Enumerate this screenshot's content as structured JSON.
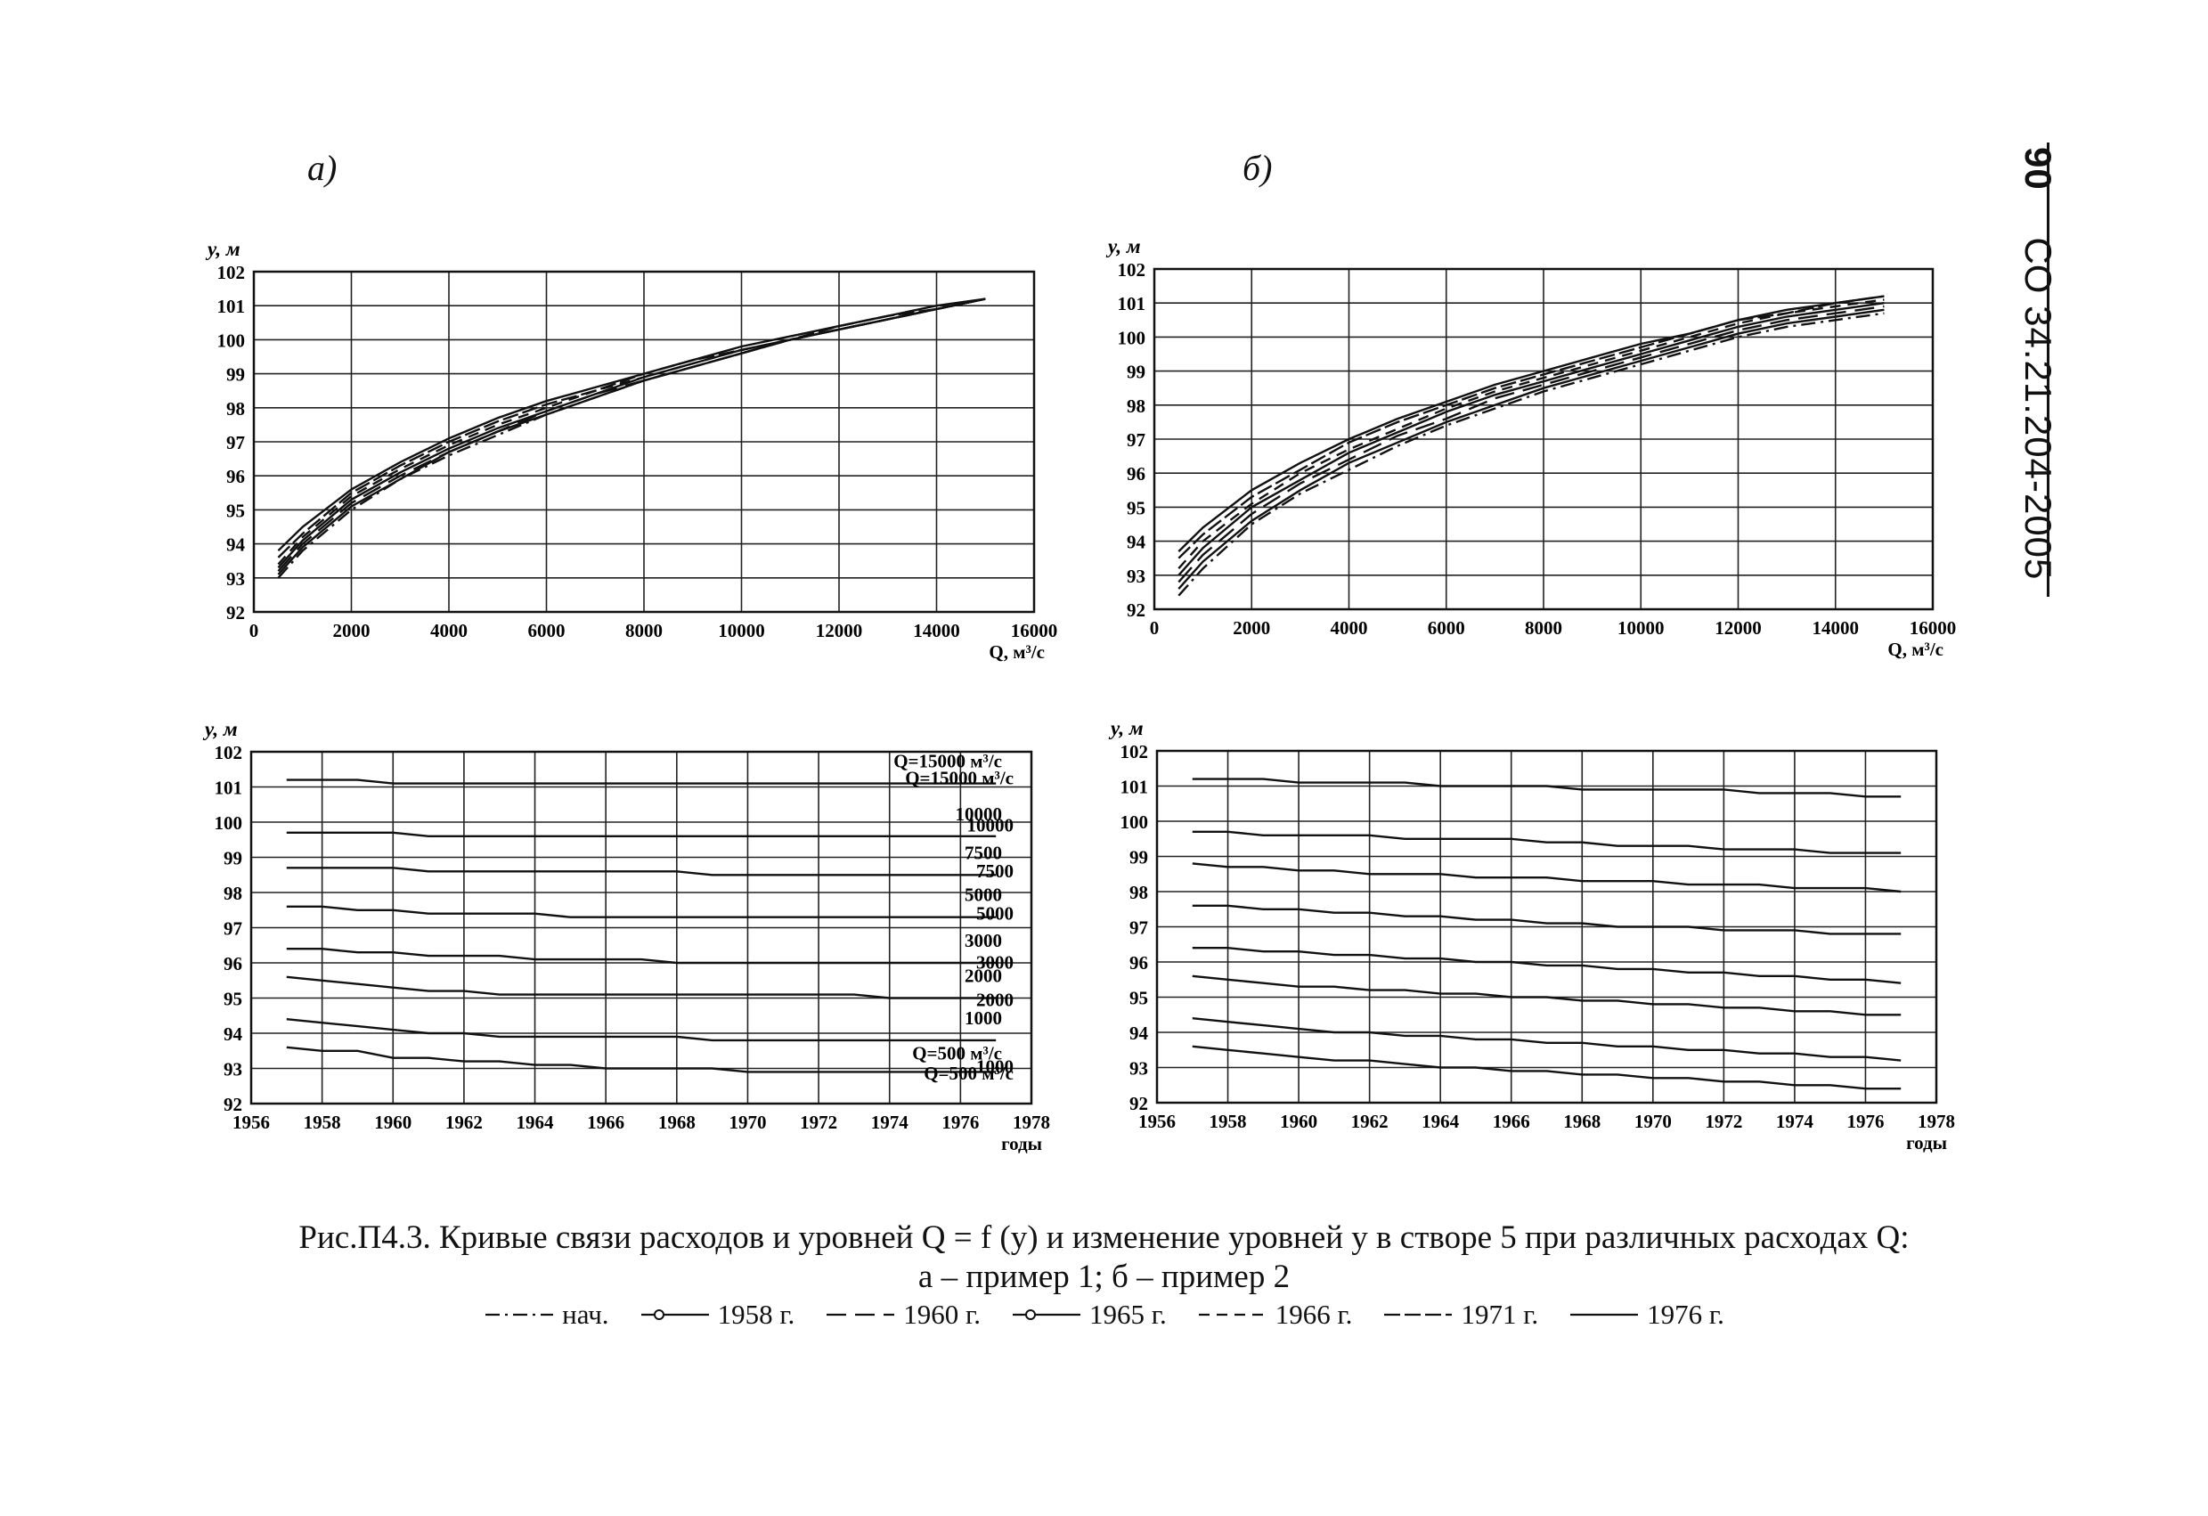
{
  "panels": {
    "a_label": "а)",
    "b_label": "б)"
  },
  "stamp": {
    "page_number": "90",
    "doc_code": "СО 34.21.204-2005"
  },
  "caption": {
    "line1": "Рис.П4.3. Кривые связи расходов и уровней Q = f (y) и изменение уровней y в створе  5  при различных расходах Q:",
    "line2": "а – пример 1;  б – пример 2"
  },
  "legend": [
    {
      "label": "нач.",
      "style": "dashdot"
    },
    {
      "label": "1958 г.",
      "style": "circle"
    },
    {
      "label": "1960 г.",
      "style": "longdash"
    },
    {
      "label": "1965 г.",
      "style": "circle-solid"
    },
    {
      "label": "1966 г.",
      "style": "dash"
    },
    {
      "label": "1971 г.",
      "style": "dash2"
    },
    {
      "label": "1976 г.",
      "style": "solid"
    }
  ],
  "chart_data": [
    {
      "id": "a-rating",
      "type": "line",
      "ylabel": "y, м",
      "xlabel": "Q, м³/с",
      "xlim": [
        0,
        16000
      ],
      "ylim": [
        92,
        102
      ],
      "xticks": [
        0,
        2000,
        4000,
        6000,
        8000,
        10000,
        12000,
        14000,
        16000
      ],
      "yticks": [
        92,
        93,
        94,
        95,
        96,
        97,
        98,
        99,
        100,
        101,
        102
      ],
      "x": [
        500,
        1000,
        2000,
        3000,
        4000,
        5000,
        6000,
        7000,
        8000,
        9000,
        10000,
        11000,
        12000,
        13000,
        14000,
        15000
      ],
      "grid": true,
      "series": [
        {
          "name": "нач.",
          "style": "dashdot",
          "values": [
            93.0,
            93.8,
            95.0,
            95.9,
            96.6,
            97.2,
            97.8,
            98.3,
            98.8,
            99.2,
            99.6,
            100.0,
            100.3,
            100.6,
            100.9,
            101.2
          ]
        },
        {
          "name": "1958 г.",
          "style": "circle",
          "values": [
            93.1,
            93.9,
            95.1,
            95.9,
            96.7,
            97.3,
            97.8,
            98.3,
            98.8,
            99.2,
            99.6,
            100.0,
            100.3,
            100.6,
            100.9,
            101.2
          ]
        },
        {
          "name": "1960 г.",
          "style": "longdash",
          "values": [
            93.2,
            94.0,
            95.2,
            96.0,
            96.7,
            97.3,
            97.9,
            98.4,
            98.8,
            99.2,
            99.6,
            100.0,
            100.3,
            100.6,
            100.9,
            101.2
          ]
        },
        {
          "name": "1965 г.",
          "style": "circle-solid",
          "values": [
            93.3,
            94.1,
            95.3,
            96.1,
            96.8,
            97.4,
            97.9,
            98.4,
            98.9,
            99.3,
            99.7,
            100.0,
            100.3,
            100.6,
            100.9,
            101.2
          ]
        },
        {
          "name": "1966 г.",
          "style": "dash",
          "values": [
            93.4,
            94.2,
            95.4,
            96.2,
            96.9,
            97.5,
            98.0,
            98.5,
            98.9,
            99.3,
            99.7,
            100.0,
            100.3,
            100.6,
            100.9,
            101.2
          ]
        },
        {
          "name": "1971 г.",
          "style": "dash2",
          "values": [
            93.6,
            94.3,
            95.5,
            96.3,
            97.0,
            97.6,
            98.1,
            98.5,
            99.0,
            99.4,
            99.7,
            100.0,
            100.4,
            100.7,
            100.9,
            101.2
          ]
        },
        {
          "name": "1976 г.",
          "style": "solid",
          "values": [
            93.8,
            94.5,
            95.6,
            96.4,
            97.1,
            97.7,
            98.2,
            98.6,
            99.0,
            99.4,
            99.8,
            100.1,
            100.4,
            100.7,
            101.0,
            101.2
          ]
        }
      ]
    },
    {
      "id": "b-rating",
      "type": "line",
      "ylabel": "y, м",
      "xlabel": "Q, м³/с",
      "xlim": [
        0,
        16000
      ],
      "ylim": [
        92,
        102
      ],
      "xticks": [
        0,
        2000,
        4000,
        6000,
        8000,
        10000,
        12000,
        14000,
        16000
      ],
      "yticks": [
        92,
        93,
        94,
        95,
        96,
        97,
        98,
        99,
        100,
        101,
        102
      ],
      "x": [
        500,
        1000,
        2000,
        3000,
        4000,
        5000,
        6000,
        7000,
        8000,
        9000,
        10000,
        11000,
        12000,
        13000,
        14000,
        15000
      ],
      "grid": true,
      "series": [
        {
          "name": "нач.",
          "style": "dashdot",
          "values": [
            92.4,
            93.2,
            94.5,
            95.4,
            96.1,
            96.8,
            97.4,
            97.9,
            98.4,
            98.8,
            99.2,
            99.6,
            100.0,
            100.3,
            100.5,
            100.7
          ]
        },
        {
          "name": "1958 г.",
          "style": "circle",
          "values": [
            92.6,
            93.4,
            94.6,
            95.5,
            96.3,
            96.9,
            97.5,
            98.0,
            98.5,
            98.9,
            99.3,
            99.7,
            100.1,
            100.4,
            100.6,
            100.8
          ]
        },
        {
          "name": "1960 г.",
          "style": "longdash",
          "values": [
            92.8,
            93.6,
            94.8,
            95.7,
            96.4,
            97.1,
            97.6,
            98.2,
            98.6,
            99.0,
            99.4,
            99.8,
            100.2,
            100.5,
            100.7,
            100.9
          ]
        },
        {
          "name": "1965 г.",
          "style": "circle-solid",
          "values": [
            93.0,
            93.8,
            95.0,
            95.8,
            96.6,
            97.2,
            97.8,
            98.3,
            98.7,
            99.1,
            99.5,
            99.9,
            100.3,
            100.6,
            100.8,
            101.0
          ]
        },
        {
          "name": "1966 г.",
          "style": "dash",
          "values": [
            93.2,
            94.0,
            95.1,
            96.0,
            96.7,
            97.3,
            97.9,
            98.4,
            98.8,
            99.2,
            99.6,
            100.0,
            100.4,
            100.7,
            100.9,
            101.1
          ]
        },
        {
          "name": "1971 г.",
          "style": "dash2",
          "values": [
            93.5,
            94.2,
            95.3,
            96.1,
            96.9,
            97.5,
            98.0,
            98.5,
            98.9,
            99.3,
            99.7,
            100.1,
            100.5,
            100.7,
            101.0,
            101.2
          ]
        },
        {
          "name": "1976 г.",
          "style": "solid",
          "values": [
            93.7,
            94.4,
            95.5,
            96.3,
            97.0,
            97.6,
            98.1,
            98.6,
            99.0,
            99.4,
            99.8,
            100.1,
            100.5,
            100.8,
            101.0,
            101.2
          ]
        }
      ]
    },
    {
      "id": "a-levels",
      "type": "line",
      "ylabel": "y, м",
      "xlabel": "годы",
      "xlim": [
        1956,
        1978
      ],
      "ylim": [
        92,
        102
      ],
      "xticks": [
        1956,
        1958,
        1960,
        1962,
        1964,
        1966,
        1968,
        1970,
        1972,
        1974,
        1976,
        1978
      ],
      "yticks": [
        92,
        93,
        94,
        95,
        96,
        97,
        98,
        99,
        100,
        101,
        102
      ],
      "x": [
        1957,
        1958,
        1959,
        1960,
        1961,
        1962,
        1963,
        1964,
        1965,
        1966,
        1967,
        1968,
        1969,
        1970,
        1971,
        1972,
        1973,
        1974,
        1975,
        1976,
        1977
      ],
      "grid": true,
      "series": [
        {
          "name": "Q=15000 м³/с",
          "style": "solid",
          "values": [
            101.2,
            101.2,
            101.2,
            101.1,
            101.1,
            101.1,
            101.1,
            101.1,
            101.1,
            101.1,
            101.1,
            101.1,
            101.1,
            101.1,
            101.1,
            101.1,
            101.1,
            101.1,
            101.1,
            101.1,
            101.1
          ]
        },
        {
          "name": "10000",
          "style": "solid",
          "values": [
            99.7,
            99.7,
            99.7,
            99.7,
            99.6,
            99.6,
            99.6,
            99.6,
            99.6,
            99.6,
            99.6,
            99.6,
            99.6,
            99.6,
            99.6,
            99.6,
            99.6,
            99.6,
            99.6,
            99.6,
            99.6
          ]
        },
        {
          "name": "7500",
          "style": "solid",
          "values": [
            98.7,
            98.7,
            98.7,
            98.7,
            98.6,
            98.6,
            98.6,
            98.6,
            98.6,
            98.6,
            98.6,
            98.6,
            98.5,
            98.5,
            98.5,
            98.5,
            98.5,
            98.5,
            98.5,
            98.5,
            98.5
          ]
        },
        {
          "name": "5000",
          "style": "solid",
          "values": [
            97.6,
            97.6,
            97.5,
            97.5,
            97.4,
            97.4,
            97.4,
            97.4,
            97.3,
            97.3,
            97.3,
            97.3,
            97.3,
            97.3,
            97.3,
            97.3,
            97.3,
            97.3,
            97.3,
            97.3,
            97.3
          ]
        },
        {
          "name": "3000",
          "style": "solid",
          "values": [
            96.4,
            96.4,
            96.3,
            96.3,
            96.2,
            96.2,
            96.2,
            96.1,
            96.1,
            96.1,
            96.1,
            96.0,
            96.0,
            96.0,
            96.0,
            96.0,
            96.0,
            96.0,
            96.0,
            96.0,
            96.0
          ]
        },
        {
          "name": "2000",
          "style": "solid",
          "values": [
            95.6,
            95.5,
            95.4,
            95.3,
            95.2,
            95.2,
            95.1,
            95.1,
            95.1,
            95.1,
            95.1,
            95.1,
            95.1,
            95.1,
            95.1,
            95.1,
            95.1,
            95.0,
            95.0,
            95.0,
            95.0
          ]
        },
        {
          "name": "1000",
          "style": "solid",
          "values": [
            94.4,
            94.3,
            94.2,
            94.1,
            94.0,
            94.0,
            93.9,
            93.9,
            93.9,
            93.9,
            93.9,
            93.9,
            93.8,
            93.8,
            93.8,
            93.8,
            93.8,
            93.8,
            93.8,
            93.8,
            93.8
          ]
        },
        {
          "name": "Q=500 м³/с",
          "style": "solid",
          "values": [
            93.6,
            93.5,
            93.5,
            93.3,
            93.3,
            93.2,
            93.2,
            93.1,
            93.1,
            93.0,
            93.0,
            93.0,
            93.0,
            92.9,
            92.9,
            92.9,
            92.9,
            92.9,
            92.9,
            92.9,
            92.9
          ]
        }
      ],
      "annotations": [
        "Q=15000 м³/с",
        "10000",
        "7500",
        "5000",
        "3000",
        "2000",
        "1000",
        "Q=500 м³/с"
      ]
    },
    {
      "id": "b-levels",
      "type": "line",
      "ylabel": "y, м",
      "xlabel": "годы",
      "xlim": [
        1956,
        1978
      ],
      "ylim": [
        92,
        102
      ],
      "xticks": [
        1956,
        1958,
        1960,
        1962,
        1964,
        1966,
        1968,
        1970,
        1972,
        1974,
        1976,
        1978
      ],
      "yticks": [
        92,
        93,
        94,
        95,
        96,
        97,
        98,
        99,
        100,
        101,
        102
      ],
      "x": [
        1957,
        1958,
        1959,
        1960,
        1961,
        1962,
        1963,
        1964,
        1965,
        1966,
        1967,
        1968,
        1969,
        1970,
        1971,
        1972,
        1973,
        1974,
        1975,
        1976,
        1977
      ],
      "grid": true,
      "series": [
        {
          "name": "Q=15000 м³/с",
          "style": "solid",
          "values": [
            101.2,
            101.2,
            101.2,
            101.1,
            101.1,
            101.1,
            101.1,
            101.0,
            101.0,
            101.0,
            101.0,
            100.9,
            100.9,
            100.9,
            100.9,
            100.9,
            100.8,
            100.8,
            100.8,
            100.7,
            100.7
          ]
        },
        {
          "name": "10000",
          "style": "solid",
          "values": [
            99.7,
            99.7,
            99.6,
            99.6,
            99.6,
            99.6,
            99.5,
            99.5,
            99.5,
            99.5,
            99.4,
            99.4,
            99.3,
            99.3,
            99.3,
            99.2,
            99.2,
            99.2,
            99.1,
            99.1,
            99.1
          ]
        },
        {
          "name": "7500",
          "style": "solid",
          "values": [
            98.8,
            98.7,
            98.7,
            98.6,
            98.6,
            98.5,
            98.5,
            98.5,
            98.4,
            98.4,
            98.4,
            98.3,
            98.3,
            98.3,
            98.2,
            98.2,
            98.2,
            98.1,
            98.1,
            98.1,
            98.0
          ]
        },
        {
          "name": "5000",
          "style": "solid",
          "values": [
            97.6,
            97.6,
            97.5,
            97.5,
            97.4,
            97.4,
            97.3,
            97.3,
            97.2,
            97.2,
            97.1,
            97.1,
            97.0,
            97.0,
            97.0,
            96.9,
            96.9,
            96.9,
            96.8,
            96.8,
            96.8
          ]
        },
        {
          "name": "3000",
          "style": "solid",
          "values": [
            96.4,
            96.4,
            96.3,
            96.3,
            96.2,
            96.2,
            96.1,
            96.1,
            96.0,
            96.0,
            95.9,
            95.9,
            95.8,
            95.8,
            95.7,
            95.7,
            95.6,
            95.6,
            95.5,
            95.5,
            95.4
          ]
        },
        {
          "name": "2000",
          "style": "solid",
          "values": [
            95.6,
            95.5,
            95.4,
            95.3,
            95.3,
            95.2,
            95.2,
            95.1,
            95.1,
            95.0,
            95.0,
            94.9,
            94.9,
            94.8,
            94.8,
            94.7,
            94.7,
            94.6,
            94.6,
            94.5,
            94.5
          ]
        },
        {
          "name": "1000",
          "style": "solid",
          "values": [
            94.4,
            94.3,
            94.2,
            94.1,
            94.0,
            94.0,
            93.9,
            93.9,
            93.8,
            93.8,
            93.7,
            93.7,
            93.6,
            93.6,
            93.5,
            93.5,
            93.4,
            93.4,
            93.3,
            93.3,
            93.2
          ]
        },
        {
          "name": "Q=500 м³/с",
          "style": "solid",
          "values": [
            93.6,
            93.5,
            93.4,
            93.3,
            93.2,
            93.2,
            93.1,
            93.0,
            93.0,
            92.9,
            92.9,
            92.8,
            92.8,
            92.7,
            92.7,
            92.6,
            92.6,
            92.5,
            92.5,
            92.4,
            92.4
          ]
        }
      ],
      "annotations": [
        "Q=15000 м³/с",
        "10000",
        "7500",
        "5000",
        "3000",
        "2000",
        "1000",
        "Q=500 м³/с"
      ]
    }
  ]
}
